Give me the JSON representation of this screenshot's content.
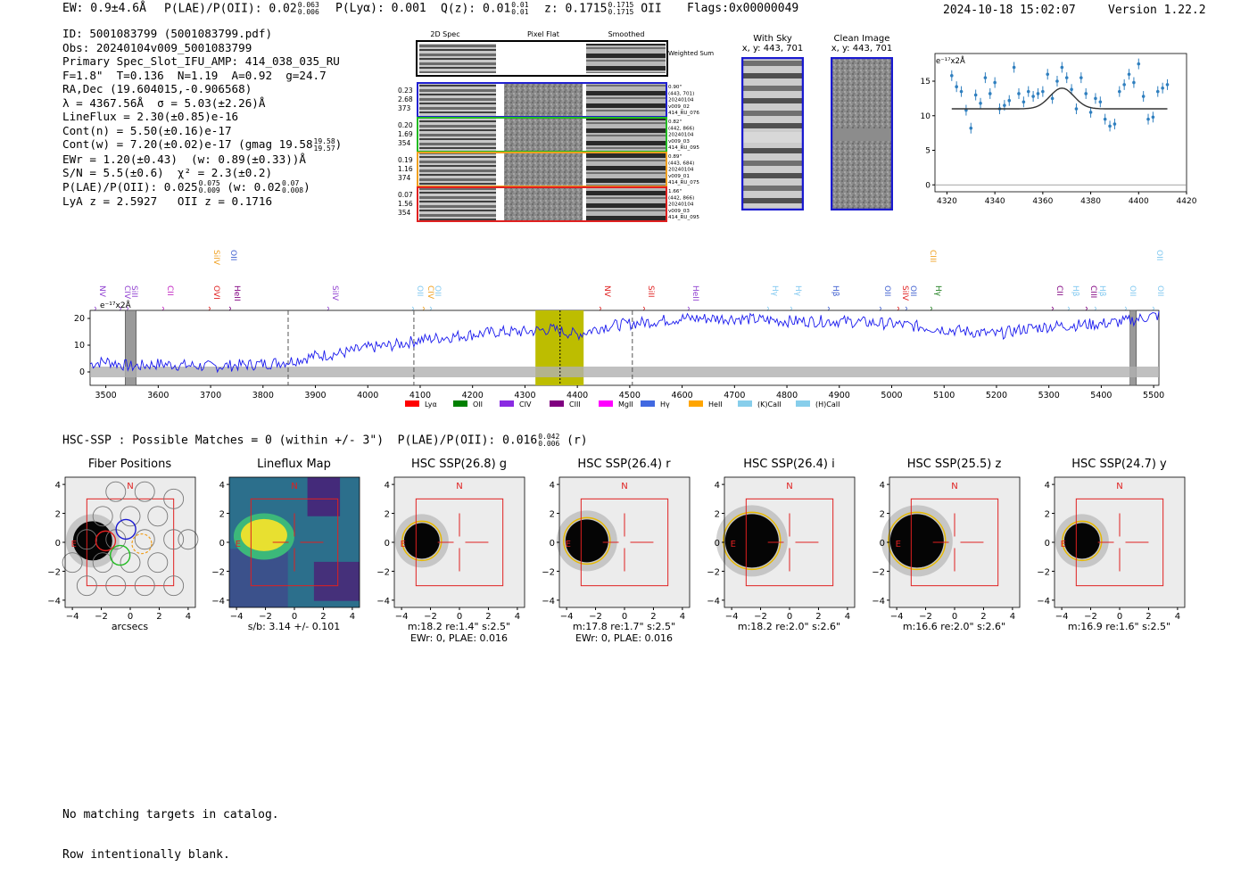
{
  "header": {
    "ew": "EW: 0.9±4.6Å",
    "plae_label": "P(LAE)/P(OII): 0.02",
    "plae_hi": "0.063",
    "plae_lo": "0.006",
    "plya": "P(Lyα): 0.001",
    "qz_label": "Q(z): 0.01",
    "qz_hi": "0.01",
    "qz_lo": "0.01",
    "z_label": "z: 0.1715",
    "z_hi": "0.1715",
    "z_lo": "0.1715",
    "z_line": "OII",
    "flags": "Flags:0x00000049",
    "timestamp": "2024-10-18 15:02:07",
    "version": "Version 1.22.2"
  },
  "info": {
    "id": "ID: 5001083799 (5001083799.pdf)",
    "obs": "Obs: 20240104v009_5001083799",
    "primary": "Primary Spec_Slot_IFU_AMP: 414_038_035_RU",
    "params": "F=1.8\"  T=0.136  N=1.19  A=0.92  g=24.7",
    "radec": "RA,Dec (19.604015,-0.906568)",
    "lambda": "λ = 4367.56Å  σ = 5.03(±2.26)Å",
    "lineflux": "LineFlux = 2.30(±0.85)e-16",
    "contn": "Cont(n) = 5.50(±0.16)e-17",
    "contw_label": "Cont(w) = 7.20(±0.02)e-17 (gmag 19.58",
    "contw_hi": "19.58",
    "contw_lo": "19.57",
    "contw_close": ")",
    "ewr": "EWr = 1.20(±0.43)  (w: 0.89(±0.33))Å",
    "sn": "S/N = 5.5(±0.6)  χ² = 2.3(±0.2)",
    "plae_label": "P(LAE)/P(OII): 0.025",
    "plae_hi": "0.075",
    "plae_lo": "0.009",
    "plae_w": "(w: 0.02",
    "plae_w_hi": "0.07",
    "plae_w_lo": "0.008",
    "plae_w_close": ")",
    "lya": "LyA z = 2.5927   OII z = 0.1716"
  },
  "spec2d": {
    "col_headers": [
      "2D Spec",
      "Pixel Flat",
      "Smoothed"
    ],
    "weighted_label": "Weighted Sum",
    "rows": [
      {
        "left": [
          "0.23",
          "2.68",
          "373"
        ],
        "right": [
          "0.90\"",
          "(443, 701)",
          "20240104",
          "v009_02",
          "414_RU_076"
        ],
        "color": "#2020d0"
      },
      {
        "left": [
          "0.20",
          "1.69",
          "354"
        ],
        "right": [
          "0.82\"",
          "(442, 866)",
          "20240104",
          "v009_03",
          "414_RU_095"
        ],
        "color": "#22bb22"
      },
      {
        "left": [
          "0.19",
          "1.16",
          "374"
        ],
        "right": [
          "0.89\"",
          "(443, 684)",
          "20240104",
          "v009_01",
          "414_RU_075"
        ],
        "color": "#f0a020"
      },
      {
        "left": [
          "0.07",
          "1.56",
          "354"
        ],
        "right": [
          "1.66\"",
          "(442, 866)",
          "20240104",
          "v009_03",
          "414_RU_095"
        ],
        "color": "#e02020"
      }
    ]
  },
  "cutouts": {
    "with_sky": {
      "title": "With Sky",
      "coords": "x, y: 443, 701"
    },
    "clean": {
      "title": "Clean Image",
      "coords": "x, y: 443, 701"
    }
  },
  "zoom_chart": {
    "unit_label": "e⁻¹⁷x2Å",
    "x_ticks": [
      "4320",
      "4340",
      "4360",
      "4380",
      "4400",
      "4420"
    ],
    "y_ticks": [
      "0",
      "5",
      "10",
      "15"
    ]
  },
  "full_spectrum": {
    "unit_label": "e⁻¹⁷x2Å",
    "x_ticks": [
      "3500",
      "3600",
      "3700",
      "3800",
      "3900",
      "4000",
      "4100",
      "4200",
      "4300",
      "4400",
      "4500",
      "4600",
      "4700",
      "4800",
      "4900",
      "5000",
      "5100",
      "5200",
      "5300",
      "5400",
      "5500"
    ],
    "y_ticks": [
      "0",
      "10",
      "20"
    ],
    "upper_lines": [
      {
        "label": "SiIV",
        "color": "#f0a020"
      },
      {
        "label": "OII",
        "color": "#4060d0"
      },
      {
        "label": "CIII",
        "color": "#f0a020"
      },
      {
        "label": "OII",
        "color": "#80c8f0"
      }
    ],
    "lower_lines": [
      {
        "label": "NV",
        "color": "#9040d0"
      },
      {
        "label": "CIV",
        "color": "#9040d0"
      },
      {
        "label": "SiII",
        "color": "#9040d0"
      },
      {
        "label": "CII",
        "color": "#c020c0"
      },
      {
        "label": "OVI",
        "color": "#e02020"
      },
      {
        "label": "HeII",
        "color": "#800080"
      },
      {
        "label": "SiIV",
        "color": "#9040d0"
      },
      {
        "label": "OII",
        "color": "#80c8f0"
      },
      {
        "label": "CIV",
        "color": "#f0a020"
      },
      {
        "label": "OII",
        "color": "#80c8f0"
      },
      {
        "label": "NV",
        "color": "#e02020"
      },
      {
        "label": "SiII",
        "color": "#e02020"
      },
      {
        "label": "HeII",
        "color": "#9040d0"
      },
      {
        "label": "Hγ",
        "color": "#80c8f0"
      },
      {
        "label": "Hγ",
        "color": "#80c8f0"
      },
      {
        "label": "Hβ",
        "color": "#4060d0"
      },
      {
        "label": "OII",
        "color": "#4060d0"
      },
      {
        "label": "SiIV",
        "color": "#e02020"
      },
      {
        "label": "OII",
        "color": "#4060d0"
      },
      {
        "label": "Hγ",
        "color": "#208020"
      },
      {
        "label": "CII",
        "color": "#800080"
      },
      {
        "label": "Hβ",
        "color": "#80c8f0"
      },
      {
        "label": "CIII",
        "color": "#800080"
      },
      {
        "label": "Hβ",
        "color": "#80c8f0"
      },
      {
        "label": "OII",
        "color": "#80c8f0"
      },
      {
        "label": "OII",
        "color": "#80c8f0"
      }
    ],
    "legend": [
      {
        "label": "Lyα",
        "color": "#ff0000"
      },
      {
        "label": "OII",
        "color": "#008000"
      },
      {
        "label": "CIV",
        "color": "#8a2be2"
      },
      {
        "label": "CIII",
        "color": "#800080"
      },
      {
        "label": "MgII",
        "color": "#ff00ff"
      },
      {
        "label": "Hγ",
        "color": "#4169e1"
      },
      {
        "label": "HeII",
        "color": "#ffa500"
      },
      {
        "label": "(K)CaII",
        "color": "#87ceeb"
      },
      {
        "label": "(H)CaII",
        "color": "#87ceeb"
      }
    ]
  },
  "hsc": {
    "summary_label": "HSC-SSP : Possible Matches = 0 (within +/- 3\")  P(LAE)/P(OII): 0.016",
    "summary_hi": "0.042",
    "summary_lo": "0.006",
    "summary_band": "(r)",
    "panels": [
      {
        "title": "Fiber Positions",
        "caption1": "arcsecs",
        "caption2": ""
      },
      {
        "title": "Lineflux Map",
        "caption1": "s/b: 3.14 +/- 0.101",
        "caption2": ""
      },
      {
        "title": "HSC SSP(26.8) g",
        "caption1": "m:18.2  re:1.4\"  s:2.5\"",
        "caption2": "EWr: 0, PLAE: 0.016"
      },
      {
        "title": "HSC SSP(26.4) r",
        "caption1": "m:17.8  re:1.7\"  s:2.5\"",
        "caption2": "EWr: 0, PLAE: 0.016"
      },
      {
        "title": "HSC SSP(26.4) i",
        "caption1": "m:18.2  re:2.0\"  s:2.6\"",
        "caption2": ""
      },
      {
        "title": "HSC SSP(25.5) z",
        "caption1": "m:16.6  re:2.0\"  s:2.6\"",
        "caption2": ""
      },
      {
        "title": "HSC SSP(24.7) y",
        "caption1": "m:16.9  re:1.6\"  s:2.5\"",
        "caption2": ""
      }
    ],
    "axis_ticks": [
      "−4",
      "−2",
      "0",
      "2",
      "4"
    ],
    "north": "N",
    "east": "E"
  },
  "footer": {
    "line1": "No matching targets in catalog.",
    "line2": "Row intentionally blank."
  },
  "chart_data": [
    {
      "type": "scatter",
      "title": "",
      "xlabel": "",
      "ylabel": "e⁻¹⁷x2Å",
      "xlim": [
        4315,
        4420
      ],
      "ylim": [
        -1,
        19
      ],
      "x": [
        4322,
        4324,
        4326,
        4328,
        4330,
        4332,
        4334,
        4336,
        4338,
        4340,
        4342,
        4344,
        4346,
        4348,
        4350,
        4352,
        4354,
        4356,
        4358,
        4360,
        4362,
        4364,
        4366,
        4368,
        4370,
        4372,
        4374,
        4376,
        4378,
        4380,
        4382,
        4384,
        4386,
        4388,
        4390,
        4392,
        4394,
        4396,
        4398,
        4400,
        4402,
        4404,
        4406,
        4408,
        4410,
        4412
      ],
      "y": [
        15.8,
        14.2,
        13.5,
        10.8,
        8.2,
        13.0,
        11.8,
        15.5,
        13.2,
        14.8,
        11.0,
        11.5,
        12.2,
        17.0,
        13.2,
        12.0,
        13.5,
        12.8,
        13.2,
        13.5,
        16.0,
        12.5,
        15.0,
        17.0,
        15.5,
        13.8,
        11.0,
        15.5,
        13.2,
        10.5,
        12.5,
        12.0,
        9.5,
        8.5,
        8.8,
        13.5,
        14.5,
        16.0,
        14.8,
        17.5,
        12.8,
        9.5,
        9.8,
        13.5,
        14.0,
        14.5
      ],
      "fit_baseline": 11.0,
      "fit_peak": 14.0,
      "fit_center": 4368,
      "fit_sigma": 5.0
    },
    {
      "type": "line",
      "title": "",
      "xlabel": "",
      "ylabel": "e⁻¹⁷x2Å",
      "xlim": [
        3470,
        5510
      ],
      "ylim": [
        -5,
        23
      ],
      "series": [
        {
          "name": "flux",
          "x": [
            3470,
            3500,
            3550,
            3600,
            3700,
            3800,
            3850,
            3900,
            3950,
            4000,
            4050,
            4100,
            4150,
            4200,
            4250,
            4300,
            4350,
            4400,
            4450,
            4500,
            4550,
            4600,
            4700,
            4800,
            4900,
            5000,
            5100,
            5150,
            5200,
            5250,
            5300,
            5400,
            5450,
            5500
          ],
          "y": [
            3,
            4,
            2,
            3,
            2,
            3,
            4,
            6,
            7,
            9,
            10,
            12,
            13,
            14,
            15,
            15,
            16,
            14,
            17,
            18,
            19,
            20,
            20,
            19,
            19,
            18,
            16,
            15,
            14,
            16,
            17,
            18,
            19,
            21
          ]
        }
      ],
      "highlight_band": [
        4320,
        4412
      ],
      "grey_bands": [
        [
          3537,
          3558
        ],
        [
          5455,
          5467
        ]
      ],
      "dashed_lines": [
        3848,
        4088,
        4505
      ],
      "dotted_lines": [
        4367
      ]
    }
  ]
}
